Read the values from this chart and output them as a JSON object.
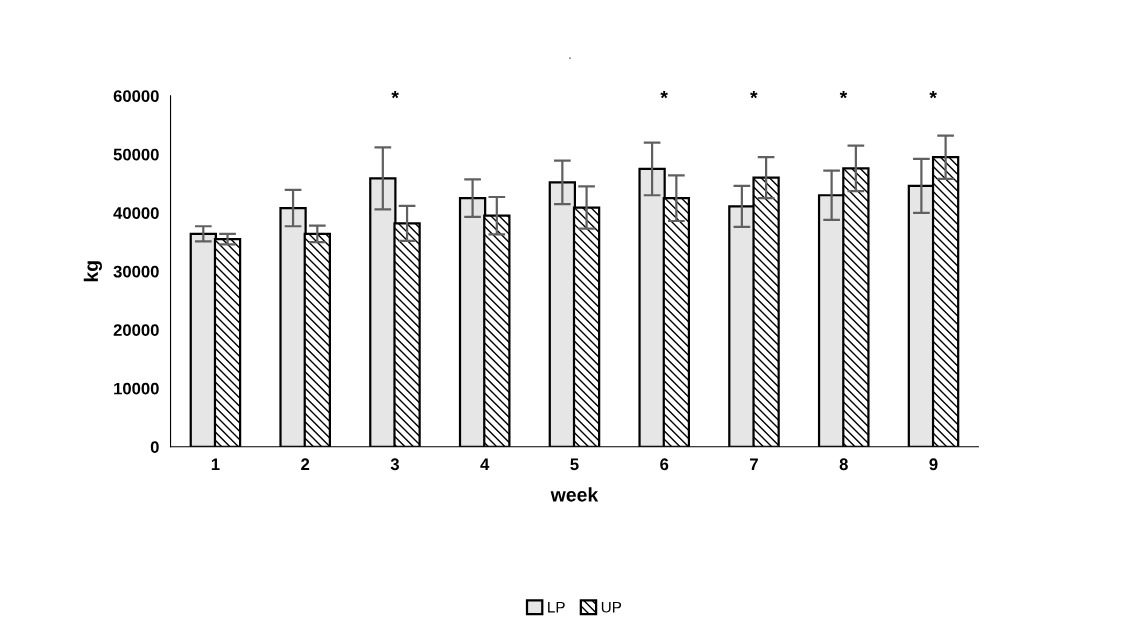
{
  "chart_data": {
    "type": "bar",
    "title": ".",
    "xlabel": "week",
    "ylabel": "kg",
    "categories": [
      "1",
      "2",
      "3",
      "4",
      "5",
      "6",
      "7",
      "8",
      "9"
    ],
    "series": [
      {
        "name": "LP",
        "color": "#e6e6e6",
        "values": [
          36400,
          40800,
          45900,
          42500,
          45200,
          47500,
          41100,
          43000,
          44600
        ],
        "errors": [
          1300,
          3100,
          5300,
          3200,
          3700,
          4500,
          3500,
          4200,
          4600
        ]
      },
      {
        "name": "UP",
        "color": "#000000",
        "values": [
          35500,
          36400,
          38200,
          39500,
          40900,
          42500,
          46000,
          47600,
          49500
        ],
        "errors": [
          900,
          1400,
          3000,
          3200,
          3600,
          3900,
          3500,
          3900,
          3700
        ]
      }
    ],
    "ylim": [
      0,
      60000
    ],
    "yticks": [
      0,
      10000,
      20000,
      30000,
      40000,
      50000,
      60000
    ],
    "annotations": [
      "*",
      "*",
      "*",
      "*",
      "*"
    ],
    "grid": false,
    "legend": "bottom"
  }
}
